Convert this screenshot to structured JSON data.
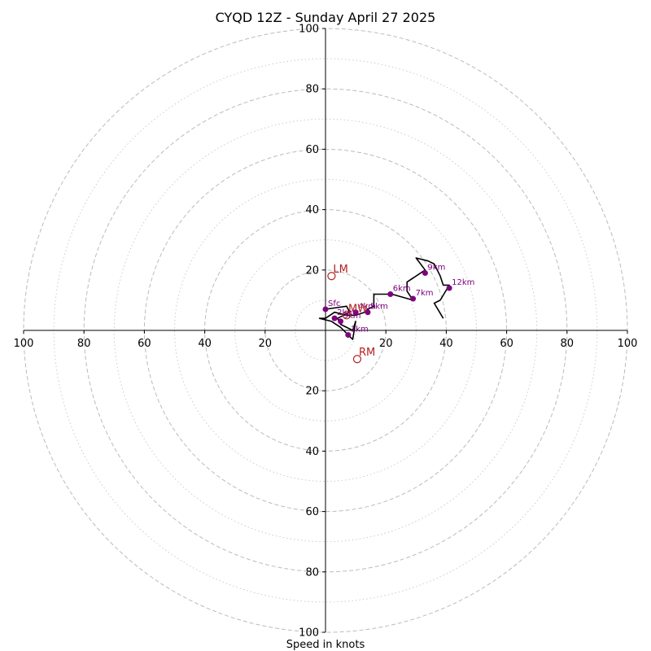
{
  "chart_data": {
    "type": "hodograph",
    "title": "CYQD 12Z - Sunday April 27 2025",
    "xlabel": "Speed in knots",
    "ring_range": [
      0,
      100
    ],
    "major_rings": [
      20,
      40,
      60,
      80,
      100
    ],
    "minor_rings": [
      10,
      30,
      50,
      70,
      90
    ],
    "tick_labels": [
      "100",
      "80",
      "60",
      "40",
      "20",
      "20",
      "40",
      "60",
      "80",
      "100"
    ],
    "y_tick_labels": [
      "100",
      "80",
      "60",
      "40",
      "20",
      "20",
      "40",
      "60",
      "80",
      "100"
    ],
    "colors": {
      "trace": "#000000",
      "height_points": "#800080",
      "motion": "#b22222",
      "major_ring": "#bbbbbb",
      "minor_ring": "#cccccc"
    },
    "trace": [
      [
        0,
        7
      ],
      [
        7,
        8
      ],
      [
        8,
        6
      ],
      [
        4,
        4
      ],
      [
        5,
        2
      ],
      [
        9,
        0
      ],
      [
        10,
        3
      ],
      [
        9,
        -3
      ],
      [
        7,
        -1
      ],
      [
        5,
        1
      ],
      [
        2,
        3
      ],
      [
        -2,
        4
      ],
      [
        0,
        4
      ],
      [
        3,
        6
      ],
      [
        7,
        5
      ],
      [
        10,
        5
      ],
      [
        13,
        6
      ],
      [
        14,
        7
      ],
      [
        16,
        8
      ],
      [
        16,
        12
      ],
      [
        22,
        12
      ],
      [
        29,
        10
      ],
      [
        27,
        13
      ],
      [
        27,
        16
      ],
      [
        33,
        20
      ],
      [
        30,
        24
      ],
      [
        34,
        23
      ],
      [
        36,
        22
      ],
      [
        38,
        18
      ],
      [
        39,
        15
      ],
      [
        41,
        15
      ],
      [
        38,
        10
      ],
      [
        36,
        9
      ],
      [
        39,
        4
      ]
    ],
    "heights": [
      {
        "label": "Sfc",
        "u": 0,
        "v": 7
      },
      {
        "label": "1km",
        "u": 7.5,
        "v": -1.5
      },
      {
        "label": "2km",
        "u": 3,
        "v": 4
      },
      {
        "label": "3km",
        "u": 5,
        "v": 3
      },
      {
        "label": "4km",
        "u": 10,
        "v": 6
      },
      {
        "label": "5km",
        "u": 14,
        "v": 6
      },
      {
        "label": "6km",
        "u": 21.5,
        "v": 12
      },
      {
        "label": "7km",
        "u": 29,
        "v": 10.5
      },
      {
        "label": "9km",
        "u": 33,
        "v": 19
      },
      {
        "label": "12km",
        "u": 41,
        "v": 14
      }
    ],
    "storm_motion": [
      {
        "label": "LM",
        "u": 2,
        "v": 18
      },
      {
        "label": "RM",
        "u": 10.5,
        "v": -9.5
      },
      {
        "label": "MW",
        "u": 7,
        "v": 5
      }
    ]
  }
}
